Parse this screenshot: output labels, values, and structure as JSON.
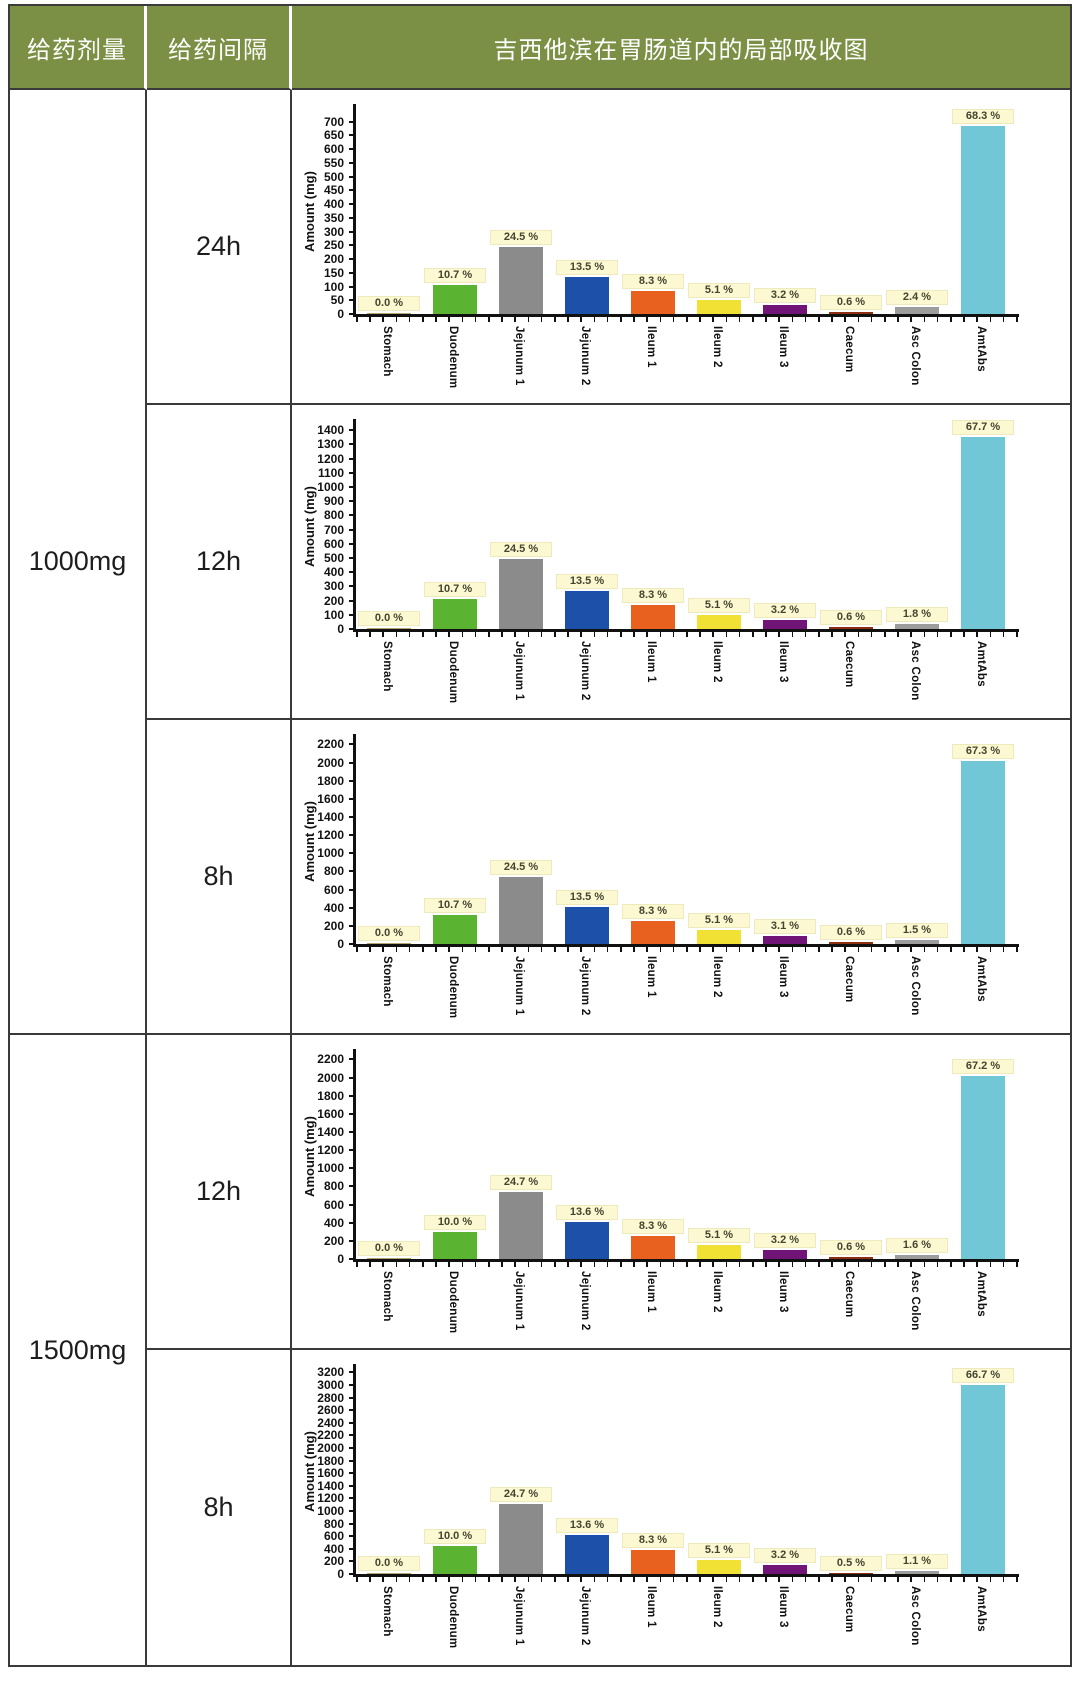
{
  "header": {
    "dose_column": "给药剂量",
    "interval_column": "给药间隔",
    "title": "吉西他滨在胃肠道内的局部吸收图"
  },
  "doses": [
    {
      "label": "1000mg",
      "rows": 3
    },
    {
      "label": "1500mg",
      "rows": 2
    }
  ],
  "style": {
    "header_bg": "#7b9044",
    "border_color": "#3a3a3a",
    "percent_label_bg": "#fbf8d2",
    "bar_colors": [
      "#b3a569",
      "#5bb431",
      "#8b8b8b",
      "#1d51a9",
      "#e8611e",
      "#f2e135",
      "#701478",
      "#8d2f10",
      "#9d9d9d",
      "#72c7d6"
    ]
  },
  "chart_data": [
    {
      "type": "bar",
      "dose": "1000mg",
      "interval": "24h",
      "ylabel": "Amount (mg)",
      "categories": [
        "Stomach",
        "Duodenum",
        "Jejunum 1",
        "Jejunum 2",
        "Ileum 1",
        "Ileum 2",
        "Ileum 3",
        "Caecum",
        "Asc Colon",
        "AmtAbs"
      ],
      "values": [
        0,
        107,
        245,
        135,
        83,
        51,
        32,
        6,
        24,
        683
      ],
      "percent_labels": [
        "0.0 %",
        "10.7 %",
        "24.5 %",
        "13.5 %",
        "8.3 %",
        "5.1 %",
        "3.2 %",
        "0.6 %",
        "2.4 %",
        "68.3 %"
      ],
      "ylim": [
        0,
        750
      ],
      "ytick_step": 50,
      "ytick_max": 700,
      "grid": false,
      "legend": false
    },
    {
      "type": "bar",
      "dose": "1000mg",
      "interval": "12h",
      "ylabel": "Amount (mg)",
      "categories": [
        "Stomach",
        "Duodenum",
        "Jejunum 1",
        "Jejunum 2",
        "Ileum 1",
        "Ileum 2",
        "Ileum 3",
        "Caecum",
        "Asc Colon",
        "AmtAbs"
      ],
      "values": [
        0,
        214,
        490,
        270,
        166,
        102,
        64,
        12,
        36,
        1354
      ],
      "percent_labels": [
        "0.0 %",
        "10.7 %",
        "24.5 %",
        "13.5 %",
        "8.3 %",
        "5.1 %",
        "3.2 %",
        "0.6 %",
        "1.8 %",
        "67.7 %"
      ],
      "ylim": [
        0,
        1450
      ],
      "ytick_step": 100,
      "ytick_max": 1400,
      "grid": false,
      "legend": false
    },
    {
      "type": "bar",
      "dose": "1000mg",
      "interval": "8h",
      "ylabel": "Amount (mg)",
      "categories": [
        "Stomach",
        "Duodenum",
        "Jejunum 1",
        "Jejunum 2",
        "Ileum 1",
        "Ileum 2",
        "Ileum 3",
        "Caecum",
        "Asc Colon",
        "AmtAbs"
      ],
      "values": [
        0,
        321,
        735,
        405,
        249,
        153,
        93,
        18,
        45,
        2019
      ],
      "percent_labels": [
        "0.0 %",
        "10.7 %",
        "24.5 %",
        "13.5 %",
        "8.3 %",
        "5.1 %",
        "3.1 %",
        "0.6 %",
        "1.5 %",
        "67.3 %"
      ],
      "ylim": [
        0,
        2270
      ],
      "ytick_step": 200,
      "ytick_max": 2200,
      "grid": false,
      "legend": false
    },
    {
      "type": "bar",
      "dose": "1500mg",
      "interval": "12h",
      "ylabel": "Amount (mg)",
      "categories": [
        "Stomach",
        "Duodenum",
        "Jejunum 1",
        "Jejunum 2",
        "Ileum 1",
        "Ileum 2",
        "Ileum 3",
        "Caecum",
        "Asc Colon",
        "AmtAbs"
      ],
      "values": [
        0,
        300,
        741,
        408,
        249,
        153,
        96,
        18,
        48,
        2016
      ],
      "percent_labels": [
        "0.0 %",
        "10.0 %",
        "24.7 %",
        "13.6 %",
        "8.3 %",
        "5.1 %",
        "3.2 %",
        "0.6 %",
        "1.6 %",
        "67.2 %"
      ],
      "ylim": [
        0,
        2270
      ],
      "ytick_step": 200,
      "ytick_max": 2200,
      "grid": false,
      "legend": false
    },
    {
      "type": "bar",
      "dose": "1500mg",
      "interval": "8h",
      "ylabel": "Amount (mg)",
      "categories": [
        "Stomach",
        "Duodenum",
        "Jejunum 1",
        "Jejunum 2",
        "Ileum 1",
        "Ileum 2",
        "Ileum 3",
        "Caecum",
        "Asc Colon",
        "AmtAbs"
      ],
      "values": [
        0,
        450,
        1112,
        612,
        374,
        230,
        144,
        23,
        50,
        3002
      ],
      "percent_labels": [
        "0.0 %",
        "10.0 %",
        "24.7 %",
        "13.6 %",
        "8.3 %",
        "5.1 %",
        "3.2 %",
        "0.5 %",
        "1.1 %",
        "66.7 %"
      ],
      "ylim": [
        0,
        3270
      ],
      "ytick_step": 200,
      "ytick_max": 3200,
      "grid": false,
      "legend": false
    }
  ]
}
